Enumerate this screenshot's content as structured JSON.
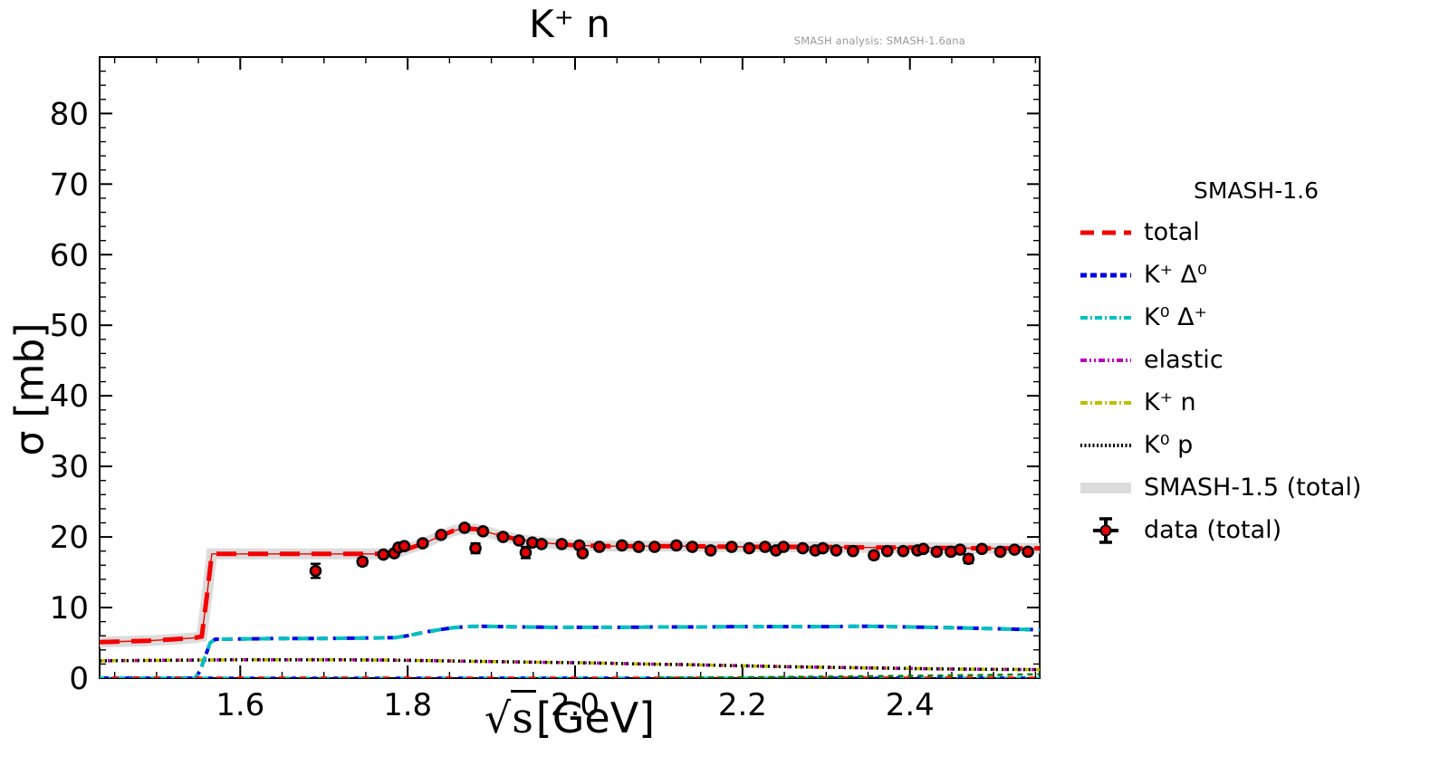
{
  "title": "K⁺ n",
  "watermark": "SMASH analysis: SMASH-1.6ana",
  "axes": {
    "y_label": "σ [mb]",
    "x_label": {
      "radical": "√",
      "symbol": "s",
      "unit": "[GeV]"
    },
    "x_tick_labels": [
      "1.6",
      "1.8",
      "2.0",
      "2.2",
      "2.4"
    ],
    "y_tick_labels": [
      "0",
      "10",
      "20",
      "30",
      "40",
      "50",
      "60",
      "70",
      "80"
    ]
  },
  "legend": {
    "header": "SMASH-1.6",
    "items": [
      {
        "label": "total",
        "style": "dash-long",
        "color": "#f40000"
      },
      {
        "label": "K⁺ Δ⁰",
        "style": "dash-short",
        "color": "#0000e6"
      },
      {
        "label": "K⁰ Δ⁺",
        "style": "dash-dot",
        "color": "#00c0c0"
      },
      {
        "label": "elastic",
        "style": "dash-dot-dot",
        "color": "#bb00bb"
      },
      {
        "label": "K⁺ n",
        "style": "dash-dot",
        "color": "#bfbf00"
      },
      {
        "label": "K⁰ p",
        "style": "dot",
        "color": "#000000"
      },
      {
        "label": "SMASH-1.5 (total)",
        "style": "band",
        "color": "#dcdcdc"
      },
      {
        "label": "data (total)",
        "style": "marker",
        "color": "#e60000"
      }
    ]
  },
  "chart_data": {
    "type": "line",
    "title": "K⁺ n",
    "xlabel": "√s [GeV]",
    "ylabel": "σ [mb]",
    "xlim": [
      1.432,
      2.555
    ],
    "ylim": [
      0,
      88
    ],
    "x_major_ticks": [
      1.6,
      1.8,
      2.0,
      2.2,
      2.4
    ],
    "x_minor_step": 0.05,
    "y_major_ticks": [
      0,
      10,
      20,
      30,
      40,
      50,
      60,
      70,
      80
    ],
    "y_minor_step": 2,
    "grid": false,
    "legend_position": "right-outside",
    "series": [
      {
        "name": "SMASH-1.5 (total)",
        "color": "#dcdcdc",
        "width": 12,
        "dash": [],
        "in_legend": true,
        "x": [
          1.432,
          1.46,
          1.49,
          1.52,
          1.545,
          1.554,
          1.56,
          1.566,
          1.6,
          1.64,
          1.68,
          1.72,
          1.76,
          1.785,
          1.8,
          1.82,
          1.84,
          1.855,
          1.868,
          1.882,
          1.895,
          1.91,
          1.93,
          1.95,
          1.97,
          2.0,
          2.04,
          2.08,
          2.12,
          2.16,
          2.2,
          2.24,
          2.28,
          2.32,
          2.36,
          2.4,
          2.44,
          2.48,
          2.52,
          2.555
        ],
        "y": [
          5.1,
          5.2,
          5.3,
          5.5,
          5.7,
          5.9,
          11.5,
          17.6,
          17.6,
          17.6,
          17.6,
          17.6,
          17.6,
          17.7,
          18.3,
          19.1,
          20.2,
          20.9,
          21.2,
          21.1,
          20.7,
          20.2,
          19.7,
          19.4,
          19.1,
          18.8,
          18.7,
          18.7,
          18.7,
          18.65,
          18.6,
          18.6,
          18.6,
          18.55,
          18.5,
          18.5,
          18.45,
          18.4,
          18.4,
          18.4
        ]
      },
      {
        "name": "K⁺ n",
        "color": "#bfbf00",
        "width": 3.5,
        "dash": [
          8,
          4
        ],
        "in_legend": true,
        "x": [
          1.432,
          1.48,
          1.54,
          1.6,
          1.66,
          1.72,
          1.78,
          1.84,
          1.9,
          1.96,
          2.02,
          2.08,
          2.14,
          2.2,
          2.26,
          2.32,
          2.38,
          2.44,
          2.5,
          2.555
        ],
        "y": [
          2.45,
          2.5,
          2.55,
          2.6,
          2.6,
          2.6,
          2.55,
          2.45,
          2.35,
          2.25,
          2.15,
          2.0,
          1.9,
          1.75,
          1.6,
          1.5,
          1.4,
          1.3,
          1.25,
          1.2
        ]
      },
      {
        "name": "elastic",
        "color": "#bb00bb",
        "width": 3.5,
        "dash": [
          4,
          11
        ],
        "dashoffset": 6,
        "in_legend": true,
        "x": [
          1.432,
          1.48,
          1.54,
          1.6,
          1.66,
          1.72,
          1.78,
          1.84,
          1.9,
          1.96,
          2.02,
          2.08,
          2.14,
          2.2,
          2.26,
          2.32,
          2.38,
          2.44,
          2.5,
          2.555
        ],
        "y": [
          2.45,
          2.5,
          2.55,
          2.6,
          2.6,
          2.6,
          2.55,
          2.45,
          2.35,
          2.25,
          2.15,
          2.0,
          1.9,
          1.75,
          1.6,
          1.5,
          1.4,
          1.3,
          1.25,
          1.2
        ]
      },
      {
        "name": "K⁰ p",
        "color": "#000000",
        "width": 3.5,
        "dash": [
          2,
          4
        ],
        "in_legend": true,
        "x": [
          1.432,
          1.48,
          1.54,
          1.6,
          1.66,
          1.72,
          1.78,
          1.84,
          1.9,
          1.96,
          2.02,
          2.08,
          2.14,
          2.2,
          2.26,
          2.32,
          2.38,
          2.44,
          2.5,
          2.555
        ],
        "y": [
          2.45,
          2.5,
          2.55,
          2.6,
          2.6,
          2.6,
          2.55,
          2.45,
          2.35,
          2.25,
          2.15,
          2.0,
          1.9,
          1.75,
          1.6,
          1.5,
          1.4,
          1.3,
          1.25,
          1.2
        ]
      },
      {
        "name": "K⁺ Δ⁰",
        "color": "#0000e6",
        "width": 4,
        "dash": [
          9,
          6
        ],
        "in_legend": true,
        "x": [
          1.432,
          1.546,
          1.552,
          1.558,
          1.564,
          1.57,
          1.6,
          1.64,
          1.68,
          1.72,
          1.76,
          1.785,
          1.8,
          1.82,
          1.84,
          1.855,
          1.87,
          1.89,
          1.91,
          1.94,
          1.97,
          2.0,
          2.05,
          2.1,
          2.15,
          2.2,
          2.25,
          2.3,
          2.35,
          2.4,
          2.45,
          2.5,
          2.555
        ],
        "y": [
          0,
          0,
          1.0,
          3.0,
          5.0,
          5.5,
          5.55,
          5.6,
          5.6,
          5.65,
          5.7,
          5.75,
          6.0,
          6.5,
          6.9,
          7.15,
          7.3,
          7.35,
          7.3,
          7.25,
          7.2,
          7.2,
          7.2,
          7.25,
          7.25,
          7.3,
          7.3,
          7.3,
          7.35,
          7.25,
          7.15,
          7.0,
          6.85
        ]
      },
      {
        "name": "K⁰ Δ⁺",
        "color": "#00c0c0",
        "width": 4,
        "dash": [
          12,
          9
        ],
        "dashoffset": 6,
        "in_legend": true,
        "x": [
          1.432,
          1.546,
          1.552,
          1.558,
          1.564,
          1.57,
          1.6,
          1.64,
          1.68,
          1.72,
          1.76,
          1.785,
          1.8,
          1.82,
          1.84,
          1.855,
          1.87,
          1.89,
          1.91,
          1.94,
          1.97,
          2.0,
          2.05,
          2.1,
          2.15,
          2.2,
          2.25,
          2.3,
          2.35,
          2.4,
          2.45,
          2.5,
          2.555
        ],
        "y": [
          0,
          0,
          1.0,
          3.0,
          5.0,
          5.5,
          5.55,
          5.6,
          5.6,
          5.65,
          5.7,
          5.75,
          6.0,
          6.5,
          6.9,
          7.15,
          7.3,
          7.35,
          7.3,
          7.25,
          7.2,
          7.2,
          7.2,
          7.25,
          7.25,
          7.3,
          7.3,
          7.3,
          7.35,
          7.25,
          7.15,
          7.0,
          6.85
        ]
      },
      {
        "name": "unlabeled zero-level channel (cyan)",
        "color": "#00c0c0",
        "width": 2.5,
        "dash": [
          12,
          10
        ],
        "in_legend": false,
        "x": [
          1.432,
          2.555
        ],
        "y": [
          0.06,
          0.06
        ]
      },
      {
        "name": "unlabeled zero-level channel (red)",
        "color": "#f40000",
        "width": 2.5,
        "dash": [
          7,
          16
        ],
        "dashoffset": 9,
        "in_legend": false,
        "x": [
          1.432,
          2.555
        ],
        "y": [
          0.06,
          0.06
        ]
      },
      {
        "name": "unlabeled zero-level channel (blue)",
        "color": "#0000e6",
        "width": 2.5,
        "dash": [
          5,
          18
        ],
        "dashoffset": 18,
        "in_legend": false,
        "x": [
          1.432,
          2.555
        ],
        "y": [
          0.06,
          0.06
        ]
      },
      {
        "name": "unlabeled rising channel (green)",
        "color": "#007f00",
        "width": 2.5,
        "dash": [
          6,
          5
        ],
        "in_legend": false,
        "x": [
          2.1,
          2.2,
          2.3,
          2.4,
          2.5,
          2.555
        ],
        "y": [
          0.05,
          0.12,
          0.2,
          0.32,
          0.45,
          0.55
        ]
      },
      {
        "name": "total",
        "color": "#f40000",
        "width": 5,
        "dash": [
          22,
          13
        ],
        "solid_core": true,
        "in_legend": true,
        "x": [
          1.432,
          1.46,
          1.49,
          1.52,
          1.545,
          1.554,
          1.56,
          1.566,
          1.6,
          1.64,
          1.68,
          1.72,
          1.76,
          1.785,
          1.8,
          1.82,
          1.84,
          1.855,
          1.868,
          1.882,
          1.895,
          1.91,
          1.93,
          1.95,
          1.97,
          2.0,
          2.04,
          2.08,
          2.12,
          2.16,
          2.2,
          2.24,
          2.28,
          2.32,
          2.36,
          2.4,
          2.44,
          2.48,
          2.52,
          2.555
        ],
        "y": [
          5.1,
          5.2,
          5.3,
          5.5,
          5.7,
          5.9,
          11.5,
          17.6,
          17.6,
          17.6,
          17.6,
          17.6,
          17.6,
          17.7,
          18.3,
          19.1,
          20.2,
          20.9,
          21.2,
          21.1,
          20.7,
          20.2,
          19.7,
          19.4,
          19.1,
          18.8,
          18.7,
          18.7,
          18.7,
          18.65,
          18.6,
          18.6,
          18.6,
          18.55,
          18.5,
          18.5,
          18.45,
          18.4,
          18.4,
          18.4
        ]
      }
    ],
    "data_points": {
      "name": "data (total)",
      "marker": "circle",
      "fill": "#e60000",
      "edge": "#000000",
      "points_format": [
        "sqrt_s_GeV",
        "sigma_mb",
        "error_mb"
      ],
      "points": [
        [
          1.69,
          15.2,
          1.0
        ],
        [
          1.746,
          16.5,
          0.5
        ],
        [
          1.771,
          17.5,
          0.4
        ],
        [
          1.784,
          17.7,
          0.4
        ],
        [
          1.789,
          18.5,
          0.4
        ],
        [
          1.796,
          18.7,
          0.4
        ],
        [
          1.818,
          19.1,
          0.4
        ],
        [
          1.84,
          20.3,
          0.4
        ],
        [
          1.868,
          21.3,
          0.4
        ],
        [
          1.881,
          18.4,
          0.7
        ],
        [
          1.89,
          20.8,
          0.4
        ],
        [
          1.914,
          20.0,
          0.4
        ],
        [
          1.933,
          19.5,
          0.4
        ],
        [
          1.941,
          17.8,
          0.8
        ],
        [
          1.949,
          19.2,
          0.4
        ],
        [
          1.96,
          19.0,
          0.4
        ],
        [
          1.984,
          19.0,
          0.4
        ],
        [
          2.005,
          18.8,
          0.3
        ],
        [
          2.009,
          17.7,
          0.4
        ],
        [
          2.029,
          18.6,
          0.3
        ],
        [
          2.056,
          18.8,
          0.3
        ],
        [
          2.076,
          18.6,
          0.3
        ],
        [
          2.095,
          18.6,
          0.3
        ],
        [
          2.121,
          18.8,
          0.3
        ],
        [
          2.14,
          18.6,
          0.3
        ],
        [
          2.162,
          18.1,
          0.3
        ],
        [
          2.187,
          18.6,
          0.3
        ],
        [
          2.208,
          18.4,
          0.3
        ],
        [
          2.227,
          18.6,
          0.3
        ],
        [
          2.24,
          18.1,
          0.3
        ],
        [
          2.249,
          18.6,
          0.3
        ],
        [
          2.272,
          18.4,
          0.3
        ],
        [
          2.287,
          18.1,
          0.3
        ],
        [
          2.296,
          18.4,
          0.3
        ],
        [
          2.312,
          18.1,
          0.3
        ],
        [
          2.332,
          18.0,
          0.3
        ],
        [
          2.357,
          17.4,
          0.5
        ],
        [
          2.373,
          18.0,
          0.3
        ],
        [
          2.392,
          18.0,
          0.3
        ],
        [
          2.409,
          18.1,
          0.3
        ],
        [
          2.416,
          18.3,
          0.3
        ],
        [
          2.432,
          17.9,
          0.3
        ],
        [
          2.449,
          17.9,
          0.4
        ],
        [
          2.46,
          18.2,
          0.3
        ],
        [
          2.47,
          16.9,
          0.6
        ],
        [
          2.486,
          18.3,
          0.3
        ],
        [
          2.508,
          17.9,
          0.3
        ],
        [
          2.525,
          18.2,
          0.3
        ],
        [
          2.541,
          17.9,
          0.3
        ]
      ]
    },
    "colors": {
      "background": "#ffffff",
      "axis": "#000000",
      "band": "#dcdcdc",
      "watermark_text": "#9a9a9a"
    }
  }
}
